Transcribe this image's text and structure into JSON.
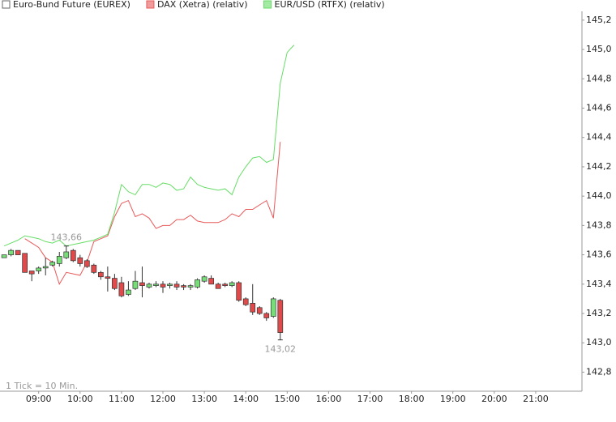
{
  "chart_data": {
    "type": "candlestick",
    "footnote": "1 Tick = 10 Min.",
    "xlim": [
      484,
      1327
    ],
    "xticks": [
      {
        "value": 540,
        "label": "09:00"
      },
      {
        "value": 600,
        "label": "10:00"
      },
      {
        "value": 660,
        "label": "11:00"
      },
      {
        "value": 720,
        "label": "12:00"
      },
      {
        "value": 780,
        "label": "13:00"
      },
      {
        "value": 840,
        "label": "14:00"
      },
      {
        "value": 900,
        "label": "15:00"
      },
      {
        "value": 960,
        "label": "16:00"
      },
      {
        "value": 1020,
        "label": "17:00"
      },
      {
        "value": 1080,
        "label": "18:00"
      },
      {
        "value": 1140,
        "label": "19:00"
      },
      {
        "value": 1200,
        "label": "20:00"
      },
      {
        "value": 1260,
        "label": "21:00"
      }
    ],
    "ylim": [
      142.67,
      145.26
    ],
    "yticks": [
      {
        "value": 142.8,
        "label": "142,8"
      },
      {
        "value": 143.0,
        "label": "143,0"
      },
      {
        "value": 143.2,
        "label": "143,2"
      },
      {
        "value": 143.4,
        "label": "143,4"
      },
      {
        "value": 143.6,
        "label": "143,6"
      },
      {
        "value": 143.8,
        "label": "143,8"
      },
      {
        "value": 144.0,
        "label": "144,0"
      },
      {
        "value": 144.2,
        "label": "144,2"
      },
      {
        "value": 144.4,
        "label": "144,4"
      },
      {
        "value": 144.6,
        "label": "144,6"
      },
      {
        "value": 144.8,
        "label": "144,8"
      },
      {
        "value": 145.0,
        "label": "145,0"
      },
      {
        "value": 145.2,
        "label": "145,2"
      }
    ],
    "series": [
      {
        "name": "Euro-Bund Future (EUREX)",
        "type": "candlestick",
        "color": "#ffffff",
        "up_color": "#77dd77",
        "down_color": "#e04a4a",
        "x": [
          490,
          500,
          510,
          520,
          530,
          540,
          550,
          560,
          570,
          580,
          590,
          600,
          610,
          620,
          630,
          640,
          650,
          660,
          670,
          680,
          690,
          700,
          710,
          720,
          730,
          740,
          750,
          760,
          770,
          780,
          790,
          800,
          810,
          820,
          830,
          840,
          850,
          860,
          870,
          880,
          890
        ],
        "open": [
          143.58,
          143.6,
          143.63,
          143.61,
          143.49,
          143.49,
          143.51,
          143.53,
          143.54,
          143.58,
          143.63,
          143.58,
          143.56,
          143.53,
          143.48,
          143.45,
          143.44,
          143.41,
          143.33,
          143.37,
          143.41,
          143.38,
          143.39,
          143.4,
          143.39,
          143.4,
          143.39,
          143.38,
          143.38,
          143.42,
          143.44,
          143.4,
          143.4,
          143.39,
          143.41,
          143.3,
          143.27,
          143.24,
          143.2,
          143.18,
          143.29
        ],
        "high": [
          143.6,
          143.64,
          143.63,
          143.61,
          143.49,
          143.52,
          143.58,
          143.56,
          143.62,
          143.66,
          143.64,
          143.6,
          143.57,
          143.54,
          143.49,
          143.52,
          143.47,
          143.45,
          143.42,
          143.49,
          143.52,
          143.41,
          143.42,
          143.42,
          143.41,
          143.42,
          143.4,
          143.4,
          143.44,
          143.46,
          143.46,
          143.41,
          143.41,
          143.42,
          143.42,
          143.31,
          143.4,
          143.25,
          143.21,
          143.31,
          143.3
        ],
        "low": [
          143.58,
          143.59,
          143.6,
          143.48,
          143.42,
          143.47,
          143.46,
          143.52,
          143.52,
          143.57,
          143.55,
          143.52,
          143.51,
          143.47,
          143.43,
          143.35,
          143.36,
          143.31,
          143.32,
          143.36,
          143.31,
          143.37,
          143.38,
          143.34,
          143.37,
          143.36,
          143.36,
          143.36,
          143.37,
          143.41,
          143.4,
          143.37,
          143.38,
          143.38,
          143.28,
          143.25,
          143.19,
          143.19,
          143.15,
          143.17,
          143.02
        ],
        "close": [
          143.6,
          143.63,
          143.6,
          143.48,
          143.47,
          143.51,
          143.52,
          143.55,
          143.59,
          143.62,
          143.56,
          143.54,
          143.52,
          143.48,
          143.45,
          143.44,
          143.37,
          143.32,
          143.36,
          143.42,
          143.39,
          143.4,
          143.4,
          143.38,
          143.4,
          143.38,
          143.38,
          143.39,
          143.43,
          143.45,
          143.4,
          143.37,
          143.39,
          143.41,
          143.29,
          143.26,
          143.21,
          143.2,
          143.17,
          143.3,
          143.07
        ]
      },
      {
        "name": "DAX (Xetra) (relativ)",
        "type": "line",
        "color": "#e85a5a",
        "x": [
          490,
          500,
          510,
          520,
          530,
          540,
          550,
          560,
          570,
          580,
          590,
          600,
          610,
          620,
          630,
          640,
          650,
          660,
          670,
          680,
          690,
          700,
          710,
          720,
          730,
          740,
          750,
          760,
          770,
          780,
          790,
          800,
          810,
          820,
          830,
          840,
          850,
          860,
          870,
          880,
          890
        ],
        "values": [
          null,
          null,
          null,
          143.71,
          143.68,
          143.65,
          143.58,
          143.55,
          143.4,
          143.48,
          143.47,
          143.46,
          143.55,
          143.69,
          143.71,
          143.73,
          143.86,
          143.95,
          143.97,
          143.86,
          143.88,
          143.85,
          143.78,
          143.8,
          143.8,
          143.84,
          143.84,
          143.87,
          143.83,
          143.82,
          143.82,
          143.82,
          143.84,
          143.88,
          143.86,
          143.91,
          143.91,
          143.94,
          143.97,
          143.85,
          144.37
        ]
      },
      {
        "name": "EUR/USD (RTFX) (relativ)",
        "type": "line",
        "color": "#66dd66",
        "x": [
          490,
          500,
          510,
          520,
          530,
          540,
          550,
          560,
          570,
          580,
          590,
          600,
          610,
          620,
          630,
          640,
          650,
          660,
          670,
          680,
          690,
          700,
          710,
          720,
          730,
          740,
          750,
          760,
          770,
          780,
          790,
          800,
          810,
          820,
          830,
          840,
          850,
          860,
          870,
          880,
          890,
          900,
          910
        ],
        "values": [
          143.66,
          143.68,
          143.7,
          143.73,
          143.72,
          143.71,
          143.69,
          143.68,
          143.7,
          143.66,
          143.67,
          143.68,
          143.69,
          143.7,
          143.72,
          143.74,
          143.89,
          144.08,
          144.03,
          144.01,
          144.08,
          144.08,
          144.06,
          144.09,
          144.08,
          144.04,
          144.05,
          144.13,
          144.08,
          144.06,
          144.05,
          144.04,
          144.05,
          144.01,
          144.13,
          144.2,
          144.26,
          144.27,
          144.23,
          144.25,
          144.77,
          144.98,
          145.03
        ]
      }
    ],
    "annotations": [
      {
        "x": 580,
        "value": 143.66,
        "label": "143,66"
      },
      {
        "x": 890,
        "value": 143.02,
        "label": "143,02"
      }
    ]
  }
}
